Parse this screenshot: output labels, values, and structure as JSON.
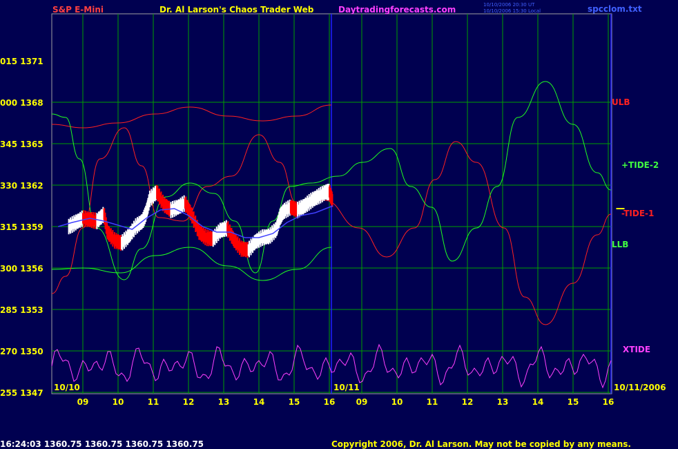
{
  "header": {
    "symbol": "S&P E-Mini",
    "title": "Dr. Al Larson's Chaos Trader Web",
    "site": "Daytradingforecasts.com",
    "stamp1": "10/10/2006 20:30 UT",
    "stamp2": "10/10/2006 15:30 Local",
    "file": "spcclom.txt"
  },
  "footer": {
    "quote": "16:24:03  1360.75  1360.75  1360.75  1360.75",
    "copyright": "Copyright 2006, Dr. Al Larson. May not be copied by any means."
  },
  "colors": {
    "background": "#000050",
    "grid": "#00a000",
    "divider": "#2020ff",
    "frame": "#a0a0a0",
    "up_bar": "#ffffff",
    "down_bar": "#ff0000",
    "ulb": "#ff2020",
    "tide": "#20ff20",
    "xtide": "#ff40ff",
    "label_yellow": "#ffff00",
    "label_green": "#40ff40",
    "header_red": "#ff4040"
  },
  "chart_data": {
    "type": "line",
    "y_left_ticks": [
      "015",
      "000",
      "345",
      "330",
      "315",
      "300",
      "285",
      "270",
      "255"
    ],
    "y_right_ticks": [
      "1371",
      "1368",
      "1365",
      "1362",
      "1359",
      "1356",
      "1353",
      "1350",
      "1347"
    ],
    "price_range": [
      1347,
      1371
    ],
    "x_hours_day1": [
      "09",
      "10",
      "11",
      "12",
      "13",
      "14",
      "15",
      "16"
    ],
    "x_hours_day2": [
      "09",
      "10",
      "11",
      "12",
      "13",
      "14",
      "15",
      "16"
    ],
    "date_labels": [
      "10/10",
      "10/11",
      "10/11/2006"
    ],
    "series_labels": {
      "ulb": "ULB",
      "tide_plus": "+TIDE-2",
      "tide_minus": "-TIDE-1",
      "llb": "LLB",
      "xtide": "XTIDE"
    },
    "price_day1": [
      [
        8.6,
        1359.0
      ],
      [
        8.8,
        1359.3
      ],
      [
        9.0,
        1359.6
      ],
      [
        9.2,
        1359.5
      ],
      [
        9.4,
        1359.4
      ],
      [
        9.6,
        1359.9
      ],
      [
        9.7,
        1358.6
      ],
      [
        9.9,
        1358.0
      ],
      [
        10.1,
        1357.8
      ],
      [
        10.3,
        1358.3
      ],
      [
        10.5,
        1359.0
      ],
      [
        10.7,
        1359.4
      ],
      [
        10.8,
        1360.0
      ],
      [
        10.9,
        1361.0
      ],
      [
        11.1,
        1361.5
      ],
      [
        11.3,
        1360.6
      ],
      [
        11.5,
        1360.2
      ],
      [
        11.7,
        1360.4
      ],
      [
        11.9,
        1360.7
      ],
      [
        12.1,
        1359.8
      ],
      [
        12.3,
        1358.6
      ],
      [
        12.5,
        1358.2
      ],
      [
        12.7,
        1358.1
      ],
      [
        12.9,
        1358.7
      ],
      [
        13.1,
        1358.9
      ],
      [
        13.3,
        1358.0
      ],
      [
        13.5,
        1357.4
      ],
      [
        13.7,
        1357.3
      ],
      [
        13.9,
        1357.9
      ],
      [
        14.1,
        1358.2
      ],
      [
        14.3,
        1358.3
      ],
      [
        14.5,
        1358.8
      ],
      [
        14.6,
        1359.7
      ],
      [
        14.7,
        1360.1
      ],
      [
        14.9,
        1360.4
      ],
      [
        15.1,
        1360.2
      ],
      [
        15.3,
        1360.5
      ],
      [
        15.5,
        1360.9
      ],
      [
        15.7,
        1361.2
      ],
      [
        15.9,
        1361.5
      ],
      [
        16.0,
        1361.5
      ],
      [
        16.1,
        1360.8
      ]
    ],
    "mid_line_day1": [
      [
        8.3,
        1359.0
      ],
      [
        8.7,
        1359.3
      ],
      [
        9.2,
        1359.6
      ],
      [
        9.6,
        1359.4
      ],
      [
        10.0,
        1359.1
      ],
      [
        10.4,
        1358.8
      ],
      [
        10.8,
        1359.6
      ],
      [
        11.2,
        1360.2
      ],
      [
        11.6,
        1360.3
      ],
      [
        12.0,
        1359.8
      ],
      [
        12.4,
        1359.0
      ],
      [
        12.8,
        1358.6
      ],
      [
        13.2,
        1358.6
      ],
      [
        13.6,
        1358.2
      ],
      [
        14.0,
        1358.2
      ],
      [
        14.4,
        1358.5
      ],
      [
        14.8,
        1359.3
      ],
      [
        15.2,
        1359.8
      ],
      [
        15.6,
        1360.0
      ],
      [
        16.1,
        1360.5
      ]
    ],
    "last_price_marker": [
      16.5,
      1360.3
    ]
  }
}
